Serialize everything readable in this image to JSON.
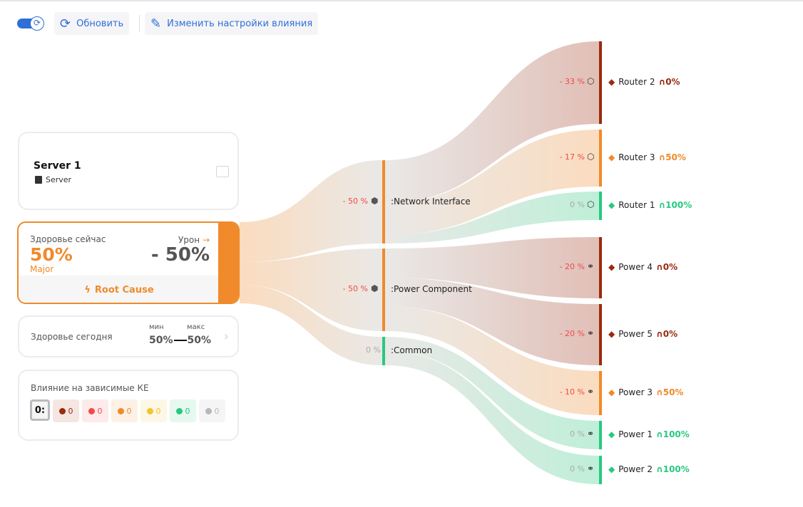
{
  "toolbar": {
    "refresh_label": "Обновить",
    "settings_label": "Изменить настройки влияния",
    "auto_refresh_on": true
  },
  "ci": {
    "name": "Server 1",
    "type": "Server"
  },
  "health_now": {
    "label": "Здоровье сейчас",
    "value": "50%",
    "severity": "Major",
    "damage_label": "Урон",
    "damage_value": "- 50%",
    "root_cause_label": "Root Cause"
  },
  "health_today": {
    "label": "Здоровье сегодня",
    "min_label": "мин",
    "max_label": "макс",
    "min": "50%",
    "max": "50%"
  },
  "impact": {
    "label": "Влияние на зависимые КЕ",
    "total": "0:",
    "chips": [
      {
        "color": "#9b2a0e",
        "bg": "#f5e6e2",
        "count": "0"
      },
      {
        "color": "#f04a4a",
        "bg": "#fdeaea",
        "count": "0"
      },
      {
        "color": "#f08a2a",
        "bg": "#fdf1e6",
        "count": "0"
      },
      {
        "color": "#f5c32a",
        "bg": "#fdf8e6",
        "count": "0"
      },
      {
        "color": "#28c97f",
        "bg": "#e6f8ef",
        "count": "0"
      },
      {
        "color": "#b5b8bc",
        "bg": "#f5f5f6",
        "count": "0"
      }
    ]
  },
  "colors": {
    "critical": "#9b2a0e",
    "major": "#f08a2a",
    "ok": "#28c97f",
    "neutral": "#b8b4ae"
  },
  "middle": [
    {
      "name": ":Network Interface",
      "pct": "- 50 %",
      "color": "#f08a2a",
      "icon": "hexagon-filled-icon"
    },
    {
      "name": ":Power Component",
      "pct": "- 50 %",
      "color": "#f08a2a",
      "icon": "hexagon-filled-icon"
    },
    {
      "name": ":Common",
      "pct": "0 %",
      "color": "#28c97f",
      "icon": ""
    }
  ],
  "targets": [
    {
      "name": "Router 2",
      "pct": "- 33 %",
      "health": "0%",
      "color": "#9b2a0e",
      "icon": "hexagon-icon"
    },
    {
      "name": "Router 3",
      "pct": "- 17 %",
      "health": "50%",
      "color": "#f08a2a",
      "icon": "hexagon-icon"
    },
    {
      "name": "Router 1",
      "pct": "0 %",
      "health": "100%",
      "color": "#28c97f",
      "icon": "hexagon-icon"
    },
    {
      "name": "Power 4",
      "pct": "- 20 %",
      "health": "0%",
      "color": "#9b2a0e",
      "icon": "circles-icon"
    },
    {
      "name": "Power 5",
      "pct": "- 20 %",
      "health": "0%",
      "color": "#9b2a0e",
      "icon": "circles-icon"
    },
    {
      "name": "Power 3",
      "pct": "- 10 %",
      "health": "50%",
      "color": "#f08a2a",
      "icon": "circles-icon"
    },
    {
      "name": "Power 1",
      "pct": "0 %",
      "health": "100%",
      "color": "#28c97f",
      "icon": "circles-icon"
    },
    {
      "name": "Power 2",
      "pct": "0 %",
      "health": "100%",
      "color": "#28c97f",
      "icon": "circles-icon"
    }
  ]
}
